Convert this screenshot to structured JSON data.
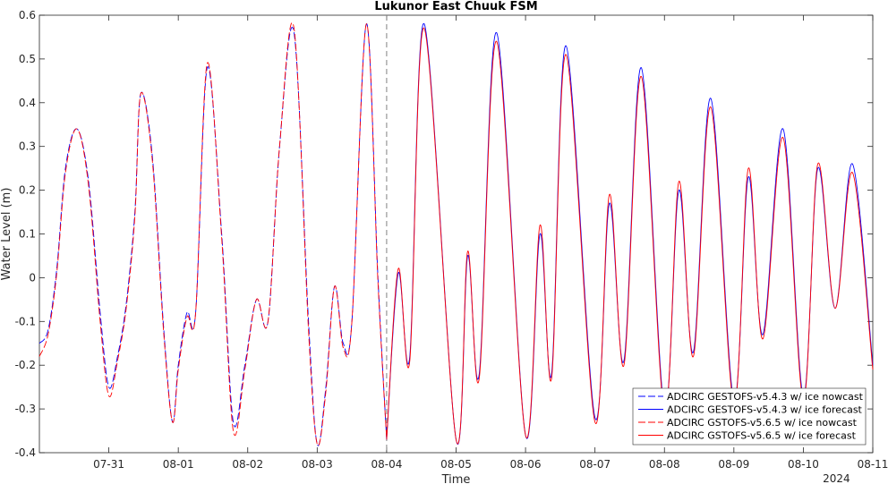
{
  "chart_data": {
    "type": "line",
    "title": "Lukunor East Chuuk FSM",
    "xlabel": "Time",
    "ylabel": "Water Level (m)",
    "year_label": "2024",
    "xlim": [
      "2024-07-30T00:00",
      "2024-08-11T00:00"
    ],
    "ylim": [
      -0.4,
      0.6
    ],
    "yticks": [
      -0.4,
      -0.3,
      -0.2,
      -0.1,
      0,
      0.1,
      0.2,
      0.3,
      0.4,
      0.5,
      0.6
    ],
    "ytick_labels": [
      "-0.4",
      "-0.3",
      "-0.2",
      "-0.1",
      "0",
      "0.1",
      "0.2",
      "0.3",
      "0.4",
      "0.5",
      "0.6"
    ],
    "xticks": [
      "2024-07-31",
      "2024-08-01",
      "2024-08-02",
      "2024-08-03",
      "2024-08-04",
      "2024-08-05",
      "2024-08-06",
      "2024-08-07",
      "2024-08-08",
      "2024-08-09",
      "2024-08-10",
      "2024-08-11"
    ],
    "xtick_labels": [
      "07-31",
      "08-01",
      "08-02",
      "08-03",
      "08-04",
      "08-05",
      "08-06",
      "08-07",
      "08-08",
      "08-09",
      "08-10",
      "08-11"
    ],
    "nowcast_end": "2024-08-04T00:00",
    "grid": false,
    "legend_position": "bottom-right",
    "series": [
      {
        "name": "ADCIRC GESTOFS-v5.4.3 w/ ice nowcast",
        "color": "#0000ff",
        "dash": "dashed",
        "x": [
          "2024-07-30T00:00",
          "2024-07-30T03:00",
          "2024-07-30T06:00",
          "2024-07-30T09:00",
          "2024-07-30T13:00",
          "2024-07-30T17:00",
          "2024-07-30T21:00",
          "2024-07-31T00:00",
          "2024-07-31T03:00",
          "2024-07-31T06:00",
          "2024-07-31T09:00",
          "2024-07-31T11:00",
          "2024-07-31T15:00",
          "2024-07-31T19:00",
          "2024-07-31T22:00",
          "2024-08-01T00:00",
          "2024-08-01T03:00",
          "2024-08-01T06:00",
          "2024-08-01T10:00",
          "2024-08-01T15:00",
          "2024-08-01T19:00",
          "2024-08-01T23:00",
          "2024-08-02T03:00",
          "2024-08-02T07:00",
          "2024-08-02T11:00",
          "2024-08-02T16:00",
          "2024-08-02T21:00",
          "2024-08-03T00:00",
          "2024-08-03T03:00",
          "2024-08-03T06:00",
          "2024-08-03T09:00",
          "2024-08-03T12:00",
          "2024-08-03T17:00",
          "2024-08-03T21:00",
          "2024-08-04T00:00"
        ],
        "y": [
          -0.15,
          -0.12,
          0.02,
          0.25,
          0.34,
          0.22,
          -0.08,
          -0.25,
          -0.18,
          -0.06,
          0.15,
          0.42,
          0.28,
          -0.12,
          -0.33,
          -0.2,
          -0.08,
          -0.08,
          0.48,
          0.1,
          -0.33,
          -0.2,
          -0.05,
          -0.1,
          0.3,
          0.56,
          -0.1,
          -0.38,
          -0.25,
          -0.02,
          -0.15,
          -0.1,
          0.58,
          0.0,
          -0.37
        ]
      },
      {
        "name": "ADCIRC GESTOFS-v5.4.3 w/ ice forecast",
        "color": "#0000ff",
        "dash": "solid",
        "x": [
          "2024-08-04T00:00",
          "2024-08-04T04:00",
          "2024-08-04T08:00",
          "2024-08-04T13:00",
          "2024-08-05T00:00",
          "2024-08-05T04:00",
          "2024-08-05T08:00",
          "2024-08-05T14:00",
          "2024-08-06T00:00",
          "2024-08-06T05:00",
          "2024-08-06T09:00",
          "2024-08-06T14:00",
          "2024-08-07T00:00",
          "2024-08-07T05:00",
          "2024-08-07T10:00",
          "2024-08-07T16:00",
          "2024-08-08T00:00",
          "2024-08-08T05:00",
          "2024-08-08T10:00",
          "2024-08-08T16:00",
          "2024-08-09T00:00",
          "2024-08-09T05:00",
          "2024-08-09T10:00",
          "2024-08-09T17:00",
          "2024-08-10T00:00",
          "2024-08-10T05:00",
          "2024-08-10T11:00",
          "2024-08-10T17:00",
          "2024-08-11T00:00"
        ],
        "y": [
          -0.37,
          0.01,
          -0.18,
          0.58,
          -0.37,
          0.05,
          -0.22,
          0.56,
          -0.36,
          0.1,
          -0.22,
          0.53,
          -0.32,
          0.17,
          -0.19,
          0.48,
          -0.3,
          0.2,
          -0.17,
          0.41,
          -0.28,
          0.23,
          -0.13,
          0.34,
          -0.27,
          0.25,
          -0.07,
          0.26,
          -0.2
        ]
      },
      {
        "name": "ADCIRC GSTOFS-v5.6.5 w/ ice nowcast",
        "color": "#ff0000",
        "dash": "dashed",
        "x": [
          "2024-07-30T00:00",
          "2024-07-30T03:00",
          "2024-07-30T06:00",
          "2024-07-30T09:00",
          "2024-07-30T13:00",
          "2024-07-30T17:00",
          "2024-07-30T21:00",
          "2024-07-31T00:00",
          "2024-07-31T03:00",
          "2024-07-31T06:00",
          "2024-07-31T09:00",
          "2024-07-31T11:00",
          "2024-07-31T15:00",
          "2024-07-31T19:00",
          "2024-07-31T22:00",
          "2024-08-01T00:00",
          "2024-08-01T03:00",
          "2024-08-01T06:00",
          "2024-08-01T10:00",
          "2024-08-01T15:00",
          "2024-08-01T19:00",
          "2024-08-01T23:00",
          "2024-08-02T03:00",
          "2024-08-02T07:00",
          "2024-08-02T11:00",
          "2024-08-02T16:00",
          "2024-08-02T21:00",
          "2024-08-03T00:00",
          "2024-08-03T03:00",
          "2024-08-03T06:00",
          "2024-08-03T09:00",
          "2024-08-03T12:00",
          "2024-08-03T17:00",
          "2024-08-03T21:00",
          "2024-08-04T00:00"
        ],
        "y": [
          -0.18,
          -0.13,
          0.01,
          0.24,
          0.34,
          0.21,
          -0.1,
          -0.27,
          -0.19,
          -0.07,
          0.14,
          0.42,
          0.27,
          -0.13,
          -0.33,
          -0.21,
          -0.09,
          -0.08,
          0.49,
          0.09,
          -0.35,
          -0.21,
          -0.05,
          -0.1,
          0.3,
          0.57,
          -0.12,
          -0.38,
          -0.26,
          -0.02,
          -0.16,
          -0.1,
          0.58,
          -0.01,
          -0.37
        ]
      },
      {
        "name": "ADCIRC GSTOFS-v5.6.5 w/ ice forecast",
        "color": "#ff0000",
        "dash": "solid",
        "x": [
          "2024-08-04T00:00",
          "2024-08-04T04:00",
          "2024-08-04T08:00",
          "2024-08-04T13:00",
          "2024-08-05T00:00",
          "2024-08-05T04:00",
          "2024-08-05T08:00",
          "2024-08-05T14:00",
          "2024-08-06T00:00",
          "2024-08-06T05:00",
          "2024-08-06T09:00",
          "2024-08-06T14:00",
          "2024-08-07T00:00",
          "2024-08-07T05:00",
          "2024-08-07T10:00",
          "2024-08-07T16:00",
          "2024-08-08T00:00",
          "2024-08-08T05:00",
          "2024-08-08T10:00",
          "2024-08-08T16:00",
          "2024-08-09T00:00",
          "2024-08-09T05:00",
          "2024-08-09T10:00",
          "2024-08-09T17:00",
          "2024-08-10T00:00",
          "2024-08-10T05:00",
          "2024-08-10T11:00",
          "2024-08-10T17:00",
          "2024-08-11T00:00"
        ],
        "y": [
          -0.37,
          0.02,
          -0.19,
          0.57,
          -0.37,
          0.06,
          -0.23,
          0.54,
          -0.36,
          0.12,
          -0.23,
          0.51,
          -0.33,
          0.19,
          -0.2,
          0.46,
          -0.31,
          0.22,
          -0.18,
          0.39,
          -0.29,
          0.25,
          -0.14,
          0.32,
          -0.28,
          0.26,
          -0.07,
          0.24,
          -0.21
        ]
      }
    ]
  }
}
